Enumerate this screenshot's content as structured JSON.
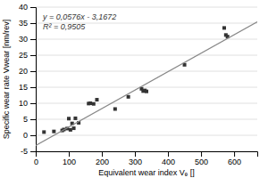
{
  "chart_data": {
    "type": "scatter",
    "x_label": "Equivalent wear index Vₑ []",
    "y_label": "Specific wear rate Vwear [nm/rev]",
    "series": [
      {
        "type": "scatter",
        "marker": "square",
        "color": "#333333",
        "x": [
          25,
          55,
          80,
          85,
          95,
          100,
          105,
          110,
          115,
          120,
          130,
          160,
          165,
          175,
          185,
          240,
          280,
          320,
          325,
          330,
          335,
          450,
          570,
          575,
          580
        ],
        "values": [
          1.0,
          1.2,
          1.5,
          1.8,
          2.1,
          5.2,
          1.7,
          3.7,
          2.2,
          5.3,
          3.9,
          9.9,
          10.0,
          9.8,
          11.1,
          8.2,
          12.0,
          14.5,
          13.8,
          14.0,
          13.7,
          22.0,
          33.5,
          31.3,
          30.8
        ]
      },
      {
        "type": "line",
        "line_style": "solid",
        "color": "#888888",
        "x": [
          0,
          670
        ],
        "values": [
          -3.1672,
          35.4248
        ]
      }
    ],
    "annotations": [
      "y = 0,0576x - 3,1672",
      "R² = 0,9505"
    ],
    "xlim": [
      0,
      670
    ],
    "ylim": [
      -5,
      40
    ],
    "xticks": [
      0,
      100,
      200,
      300,
      400,
      500,
      600
    ],
    "yticks": [
      -5,
      0,
      5,
      10,
      15,
      20,
      25,
      30,
      35,
      40
    ],
    "grid": true
  }
}
